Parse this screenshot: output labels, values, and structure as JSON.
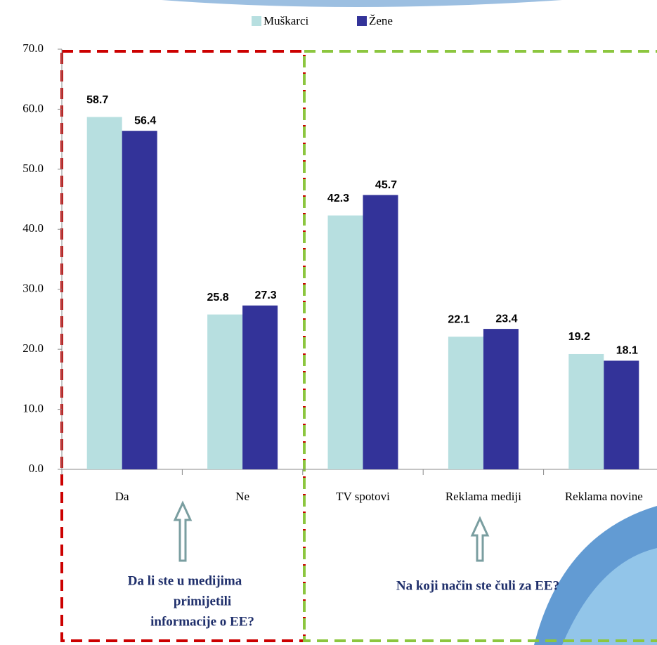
{
  "chart_data": {
    "type": "bar",
    "categories": [
      "Da",
      "Ne",
      "TV spotovi",
      "Reklama mediji",
      "Reklama novine"
    ],
    "series": [
      {
        "name": "Muškarci",
        "color": "#b7dfe0",
        "values": [
          58.7,
          25.8,
          42.3,
          22.1,
          19.2
        ]
      },
      {
        "name": "Žene",
        "color": "#333399",
        "values": [
          56.4,
          27.3,
          45.7,
          23.4,
          18.1
        ]
      }
    ],
    "ylim": [
      0,
      70
    ],
    "yticks": [
      {
        "value": 0,
        "label": "0.0"
      },
      {
        "value": 10,
        "label": "10.0"
      },
      {
        "value": 20,
        "label": "20.0"
      },
      {
        "value": 30,
        "label": "30.0"
      },
      {
        "value": 40,
        "label": "40.0"
      },
      {
        "value": 50,
        "label": "50.0"
      },
      {
        "value": 60,
        "label": "60.0"
      },
      {
        "value": 70,
        "label": "70.0"
      }
    ],
    "annotations": [
      [
        "Da li ste u medijima",
        "primijetili",
        "informacije o EE?"
      ],
      [
        "Na koji način ste čuli za EE?"
      ]
    ]
  }
}
